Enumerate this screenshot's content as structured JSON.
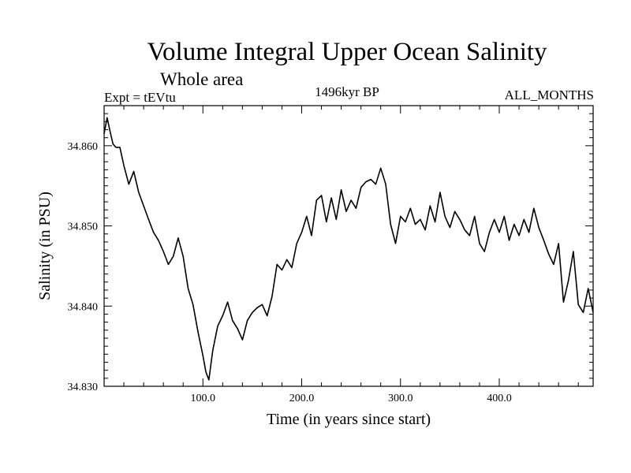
{
  "header": {
    "title": "Volume Integral Upper Ocean Salinity",
    "subtitle": "Whole area",
    "expt_label": "Expt = tEVtu",
    "period_label": "1496kyr BP",
    "months_label": "ALL_MONTHS"
  },
  "chart_data": {
    "type": "line",
    "title": "Volume Integral Upper Ocean Salinity",
    "xlabel": "Time (in years since start)",
    "ylabel": "Salinity (in PSU)",
    "xlim": [
      0,
      495
    ],
    "ylim": [
      34.83,
      34.865
    ],
    "x_ticks": [
      100,
      200,
      300,
      400
    ],
    "x_tick_labels": [
      "100.0",
      "200.0",
      "300.0",
      "400.0"
    ],
    "y_ticks": [
      34.83,
      34.84,
      34.85,
      34.86
    ],
    "y_tick_labels": [
      "34.830",
      "34.840",
      "34.850",
      "34.860"
    ],
    "grid": false,
    "series": [
      {
        "name": "Salinity",
        "color": "#000000",
        "x": [
          0,
          3,
          6,
          9,
          12,
          16,
          20,
          25,
          30,
          35,
          40,
          45,
          50,
          55,
          60,
          65,
          70,
          75,
          80,
          85,
          90,
          95,
          100,
          103,
          106,
          110,
          115,
          120,
          125,
          130,
          135,
          140,
          145,
          150,
          155,
          160,
          165,
          170,
          175,
          180,
          185,
          190,
          195,
          200,
          205,
          210,
          215,
          220,
          225,
          230,
          235,
          240,
          245,
          250,
          255,
          260,
          265,
          270,
          275,
          280,
          285,
          290,
          295,
          300,
          305,
          310,
          315,
          320,
          325,
          330,
          335,
          340,
          345,
          350,
          355,
          360,
          365,
          370,
          375,
          380,
          385,
          390,
          395,
          400,
          405,
          410,
          415,
          420,
          425,
          430,
          435,
          440,
          445,
          450,
          455,
          460,
          465,
          470,
          475,
          480,
          485,
          490,
          495
        ],
        "values": [
          34.8615,
          34.8635,
          34.8618,
          34.8602,
          34.8598,
          34.8598,
          34.8575,
          34.8552,
          34.8568,
          34.8542,
          34.8525,
          34.8508,
          34.8492,
          34.8482,
          34.8468,
          34.8452,
          34.8462,
          34.8485,
          34.8462,
          34.8422,
          34.8402,
          34.8368,
          34.8338,
          34.8318,
          34.8308,
          34.8345,
          34.8375,
          34.8388,
          34.8405,
          34.8382,
          34.8372,
          34.8358,
          34.8382,
          34.8392,
          34.8398,
          34.8402,
          34.8388,
          34.8412,
          34.8452,
          34.8445,
          34.8458,
          34.8448,
          34.8478,
          34.8492,
          34.8512,
          34.8488,
          34.8532,
          34.8538,
          34.8505,
          34.8535,
          34.8508,
          34.8545,
          34.8518,
          34.8532,
          34.8522,
          34.8548,
          34.8555,
          34.8558,
          34.8552,
          34.8572,
          34.8552,
          34.8502,
          34.8478,
          34.8512,
          34.8505,
          34.8522,
          34.8502,
          34.8508,
          34.8495,
          34.8525,
          34.8505,
          34.8542,
          34.8512,
          34.8498,
          34.8518,
          34.8508,
          34.8495,
          34.8488,
          34.8512,
          34.8478,
          34.8468,
          34.8492,
          34.8508,
          34.8492,
          34.8512,
          34.8482,
          34.8502,
          34.8488,
          34.8508,
          34.8492,
          34.8522,
          34.8498,
          34.8482,
          34.8465,
          34.8452,
          34.8478,
          34.8405,
          34.8432,
          34.8468,
          34.8402,
          34.8392,
          34.8422,
          34.8392
        ]
      }
    ]
  }
}
